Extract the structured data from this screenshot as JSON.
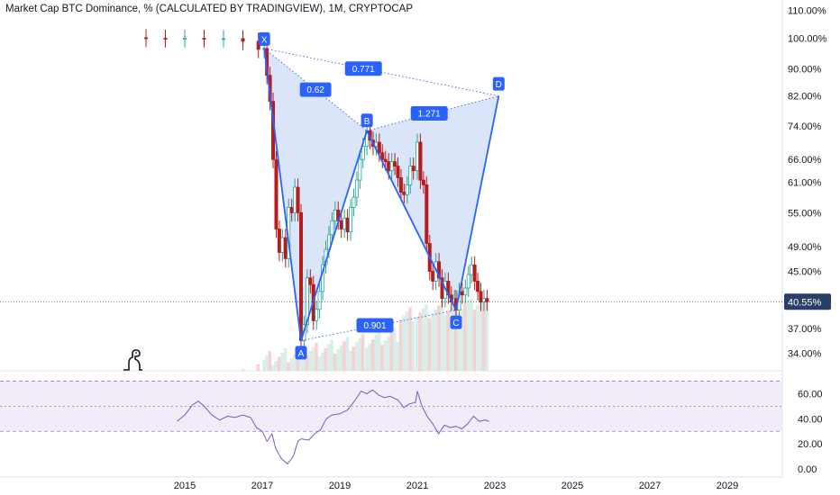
{
  "header": {
    "title": "Market Cap BTC Dominance, % (CALCULATED BY TRADINGVIEW), 1M, CRYPTOCAP"
  },
  "colors": {
    "up": "#26a69a",
    "down": "#b71c1c",
    "pattern": "#2962ff",
    "pattern_fill": "#bbd0f5",
    "rsi_line": "#7e57c2",
    "rsi_band": "#ede7f6",
    "price_tag": "#2a3f66"
  },
  "chart_data": {
    "type": "candlestick",
    "price_axis": {
      "scale": "log",
      "ticks": [
        "110.00%",
        "100.00%",
        "90.00%",
        "82.00%",
        "74.00%",
        "66.00%",
        "61.00%",
        "55.00%",
        "49.00%",
        "45.00%",
        "37.00%",
        "34.00%"
      ],
      "tick_values": [
        110,
        100,
        90,
        82,
        74,
        66,
        61,
        55,
        49,
        45,
        37,
        34
      ]
    },
    "time_axis": {
      "ticks": [
        "2015",
        "2017",
        "2019",
        "2021",
        "2023",
        "2025",
        "2027",
        "2029"
      ],
      "years": [
        2015,
        2017,
        2019,
        2021,
        2023,
        2025,
        2027,
        2029
      ]
    },
    "last_price": {
      "label": "40.55%",
      "value": 40.55
    },
    "harmonic_pattern": {
      "points": [
        {
          "name": "X",
          "t": 2017.05,
          "v": 96.5
        },
        {
          "name": "A",
          "t": 2018.0,
          "v": 35.5
        },
        {
          "name": "B",
          "t": 2019.7,
          "v": 72.8
        },
        {
          "name": "C",
          "t": 2022.0,
          "v": 39.4
        },
        {
          "name": "D",
          "t": 2023.1,
          "v": 82.0
        }
      ],
      "ratios": [
        "0.62",
        "0.771",
        "1.271",
        "0.901"
      ]
    },
    "monthly_close": [
      [
        2014.0,
        99.9
      ],
      [
        2014.5,
        99.8
      ],
      [
        2015.0,
        99.9
      ],
      [
        2015.5,
        99.8
      ],
      [
        2016.0,
        99.8
      ],
      [
        2016.5,
        98.9
      ],
      [
        2016.9,
        96.2
      ],
      [
        2017.05,
        96.5
      ],
      [
        2017.12,
        88.0
      ],
      [
        2017.2,
        80.5
      ],
      [
        2017.28,
        66.0
      ],
      [
        2017.36,
        52.0
      ],
      [
        2017.44,
        48.0
      ],
      [
        2017.52,
        50.5
      ],
      [
        2017.6,
        47.0
      ],
      [
        2017.68,
        56.0
      ],
      [
        2017.76,
        55.0
      ],
      [
        2017.84,
        60.0
      ],
      [
        2017.92,
        55.0
      ],
      [
        2018.0,
        35.5
      ],
      [
        2018.08,
        37.5
      ],
      [
        2018.16,
        44.0
      ],
      [
        2018.24,
        43.0
      ],
      [
        2018.32,
        38.0
      ],
      [
        2018.4,
        39.5
      ],
      [
        2018.48,
        42.0
      ],
      [
        2018.56,
        46.0
      ],
      [
        2018.64,
        48.5
      ],
      [
        2018.72,
        51.0
      ],
      [
        2018.8,
        53.5
      ],
      [
        2018.88,
        55.5
      ],
      [
        2018.96,
        53.5
      ],
      [
        2019.04,
        52.0
      ],
      [
        2019.12,
        54.0
      ],
      [
        2019.2,
        51.5
      ],
      [
        2019.28,
        56.0
      ],
      [
        2019.36,
        58.0
      ],
      [
        2019.44,
        61.5
      ],
      [
        2019.52,
        66.0
      ],
      [
        2019.6,
        69.0
      ],
      [
        2019.7,
        72.8
      ],
      [
        2019.78,
        70.5
      ],
      [
        2019.86,
        69.0
      ],
      [
        2019.94,
        70.0
      ],
      [
        2020.02,
        67.5
      ],
      [
        2020.1,
        66.0
      ],
      [
        2020.18,
        65.5
      ],
      [
        2020.26,
        63.5
      ],
      [
        2020.34,
        65.5
      ],
      [
        2020.42,
        64.5
      ],
      [
        2020.5,
        62.0
      ],
      [
        2020.58,
        59.0
      ],
      [
        2020.66,
        58.5
      ],
      [
        2020.74,
        60.5
      ],
      [
        2020.82,
        64.5
      ],
      [
        2020.9,
        63.5
      ],
      [
        2021.0,
        70.0
      ],
      [
        2021.08,
        61.5
      ],
      [
        2021.16,
        60.5
      ],
      [
        2021.24,
        49.5
      ],
      [
        2021.32,
        45.0
      ],
      [
        2021.4,
        43.5
      ],
      [
        2021.48,
        46.5
      ],
      [
        2021.56,
        44.0
      ],
      [
        2021.64,
        41.0
      ],
      [
        2021.72,
        43.5
      ],
      [
        2021.8,
        41.5
      ],
      [
        2021.88,
        40.5
      ],
      [
        2021.96,
        41.0
      ],
      [
        2022.0,
        39.4
      ],
      [
        2022.08,
        42.0
      ],
      [
        2022.16,
        41.5
      ],
      [
        2022.24,
        42.5
      ],
      [
        2022.32,
        44.5
      ],
      [
        2022.4,
        46.0
      ],
      [
        2022.48,
        43.5
      ],
      [
        2022.56,
        42.0
      ],
      [
        2022.64,
        40.5
      ],
      [
        2022.72,
        41.0
      ],
      [
        2022.8,
        40.55
      ]
    ],
    "rsi": {
      "ticks": [
        "60.00",
        "40.00",
        "20.00",
        "0.00"
      ],
      "tick_values": [
        60,
        40,
        20,
        0
      ],
      "bands": [
        30,
        50,
        70
      ],
      "points": [
        [
          2014.8,
          38
        ],
        [
          2015.0,
          43
        ],
        [
          2015.2,
          51
        ],
        [
          2015.35,
          54
        ],
        [
          2015.5,
          50
        ],
        [
          2015.7,
          43
        ],
        [
          2015.9,
          39
        ],
        [
          2016.1,
          42
        ],
        [
          2016.3,
          41
        ],
        [
          2016.5,
          43
        ],
        [
          2016.7,
          41
        ],
        [
          2016.85,
          33
        ],
        [
          2017.0,
          30
        ],
        [
          2017.12,
          22
        ],
        [
          2017.25,
          28
        ],
        [
          2017.35,
          16
        ],
        [
          2017.5,
          8
        ],
        [
          2017.65,
          4
        ],
        [
          2017.8,
          10
        ],
        [
          2017.92,
          22
        ],
        [
          2018.0,
          24
        ],
        [
          2018.2,
          23
        ],
        [
          2018.35,
          28
        ],
        [
          2018.5,
          31
        ],
        [
          2018.65,
          40
        ],
        [
          2018.8,
          43
        ],
        [
          2019.0,
          44
        ],
        [
          2019.2,
          47
        ],
        [
          2019.4,
          55
        ],
        [
          2019.55,
          62
        ],
        [
          2019.7,
          60
        ],
        [
          2019.85,
          63
        ],
        [
          2020.0,
          59
        ],
        [
          2020.15,
          57
        ],
        [
          2020.3,
          58
        ],
        [
          2020.5,
          55
        ],
        [
          2020.65,
          49
        ],
        [
          2020.8,
          52
        ],
        [
          2020.95,
          53
        ],
        [
          2021.0,
          62
        ],
        [
          2021.12,
          50
        ],
        [
          2021.25,
          42
        ],
        [
          2021.4,
          36
        ],
        [
          2021.55,
          28
        ],
        [
          2021.7,
          35
        ],
        [
          2021.85,
          33
        ],
        [
          2022.0,
          34
        ],
        [
          2022.15,
          32
        ],
        [
          2022.3,
          36
        ],
        [
          2022.45,
          42
        ],
        [
          2022.6,
          38
        ],
        [
          2022.75,
          39
        ],
        [
          2022.85,
          38
        ]
      ]
    }
  }
}
